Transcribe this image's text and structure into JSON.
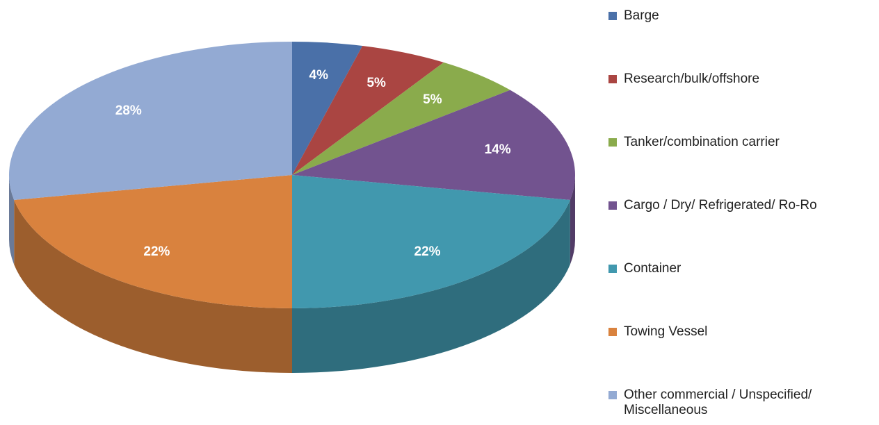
{
  "chart_data": {
    "type": "pie",
    "categories": [
      "Barge",
      "Research/bulk/offshore",
      "Tanker/combination carrier",
      "Cargo / Dry/ Refrigerated/ Ro-Ro",
      "Container",
      "Towing Vessel",
      "Other commercial / Unspecified/ Miscellaneous"
    ],
    "values": [
      4,
      5,
      5,
      14,
      22,
      22,
      28
    ],
    "value_labels": [
      "4%",
      "5%",
      "5%",
      "14%",
      "22%",
      "22%",
      "28%"
    ],
    "colors": [
      "#4a70a8",
      "#aa4542",
      "#8aab4c",
      "#72538f",
      "#4198ae",
      "#d9823e",
      "#93aad3"
    ],
    "legend": "right"
  }
}
